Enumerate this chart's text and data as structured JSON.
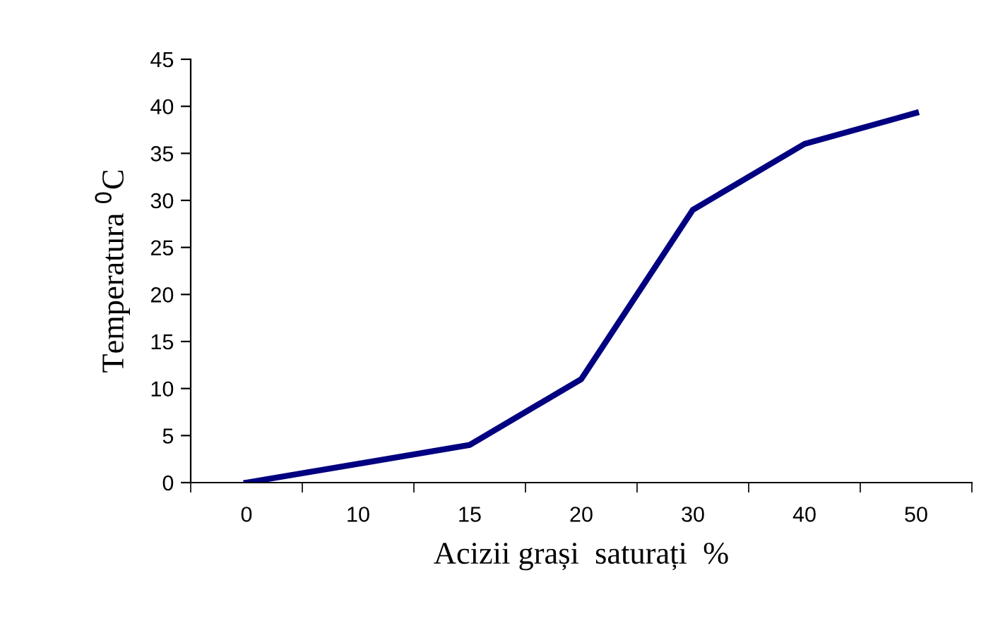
{
  "chart_data": {
    "type": "line",
    "xlabel": "Acizii grași  saturați  %",
    "ylabel": "Temperatura $^{0}$C",
    "categories": [
      "0",
      "10",
      "15",
      "20",
      "30",
      "40",
      "50"
    ],
    "series": [
      {
        "color": "#000080",
        "values": [
          0,
          2,
          4,
          11,
          29,
          36,
          39.3
        ]
      }
    ],
    "ylim": [
      0,
      45
    ],
    "yticks": [
      0,
      5,
      10,
      15,
      20,
      25,
      30,
      35,
      40,
      45
    ],
    "grid": false,
    "legend": false,
    "marker": "none",
    "line_style": "solid"
  }
}
